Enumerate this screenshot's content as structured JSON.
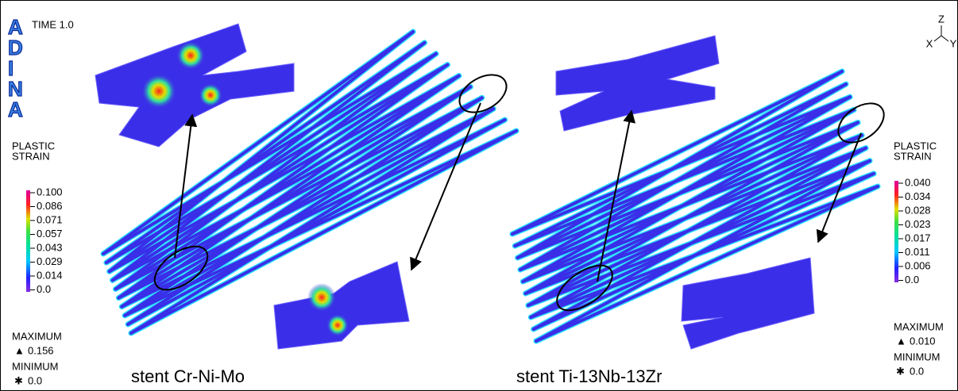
{
  "logo": [
    "A",
    "D",
    "I",
    "N",
    "A"
  ],
  "time": "TIME 1.0",
  "axes": {
    "z": "Z",
    "x": "X",
    "y": "Y"
  },
  "panels": [
    {
      "legend": {
        "title": [
          "PLASTIC",
          "STRAIN"
        ],
        "labels": [
          "0.100",
          "0.086",
          "0.071",
          "0.057",
          "0.043",
          "0.029",
          "0.014",
          "0.0"
        ]
      },
      "maximum": {
        "label": "MAXIMUM",
        "value": "0.156"
      },
      "minimum": {
        "label": "MINIMUM",
        "value": "0.0"
      },
      "caption": "stent Cr-Ni-Mo"
    },
    {
      "legend": {
        "title": [
          "PLASTIC",
          "STRAIN"
        ],
        "labels": [
          "0.040",
          "0.034",
          "0.028",
          "0.023",
          "0.017",
          "0.011",
          "0.006",
          "0.0"
        ]
      },
      "maximum": {
        "label": "MAXIMUM",
        "value": "0.010"
      },
      "minimum": {
        "label": "MINIMUM",
        "value": "0.0"
      },
      "caption": "stent Ti-13Nb-13Zr"
    }
  ]
}
